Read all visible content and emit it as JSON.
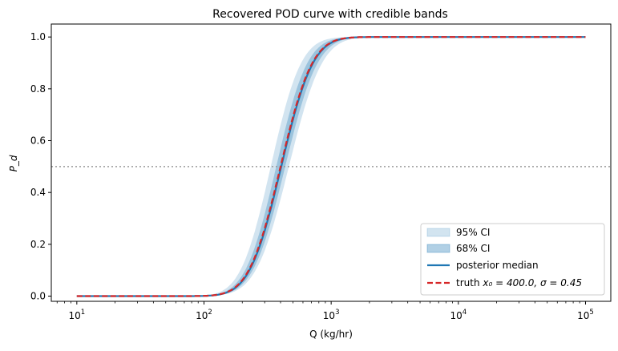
{
  "chart_data": {
    "type": "line",
    "title": "Recovered POD curve with credible bands",
    "xlabel": "Q  (kg/hr)",
    "ylabel": "P_d",
    "xscale": "log",
    "xlim": [
      6.3,
      158000
    ],
    "ylim": [
      -0.02,
      1.05
    ],
    "x_range": [
      10,
      100000
    ],
    "xticks": [
      {
        "v": 10,
        "base": "10",
        "exp": "1"
      },
      {
        "v": 100,
        "base": "10",
        "exp": "2"
      },
      {
        "v": 1000,
        "base": "10",
        "exp": "3"
      },
      {
        "v": 10000,
        "base": "10",
        "exp": "4"
      },
      {
        "v": 100000,
        "base": "10",
        "exp": "5"
      }
    ],
    "yticks": [
      0,
      0.2,
      0.4,
      0.6,
      0.8,
      1.0
    ],
    "ytick_labels": [
      "0.0",
      "0.2",
      "0.4",
      "0.6",
      "0.8",
      "1.0"
    ],
    "hline": {
      "y": 0.5,
      "style": "dotted",
      "color": "#999999"
    },
    "model": "lognormal CDF: P = Phi(ln(Q/x0)/sigma)",
    "bands": [
      {
        "name": "95% CI",
        "lower": {
          "x0": 465,
          "sigma": 0.47
        },
        "upper": {
          "x0": 335,
          "sigma": 0.43
        },
        "color": "#1f77b4",
        "opacity": 0.2
      },
      {
        "name": "68% CI",
        "lower": {
          "x0": 435,
          "sigma": 0.46
        },
        "upper": {
          "x0": 370,
          "sigma": 0.44
        },
        "color": "#1f77b4",
        "opacity": 0.3
      }
    ],
    "series": [
      {
        "name": "posterior median",
        "x0": 405,
        "sigma": 0.45,
        "color": "#1f77b4",
        "style": "solid"
      },
      {
        "name": "truth",
        "x0": 400.0,
        "sigma": 0.45,
        "color": "#d62728",
        "style": "dashed"
      }
    ],
    "sample_points": {
      "log10_Q": [
        1,
        2.0,
        2.1,
        2.2,
        2.3,
        2.4,
        2.5,
        2.6,
        2.7,
        2.8,
        2.9,
        3.0,
        3.1,
        3.2,
        3.3,
        5
      ],
      "truth_P": [
        0,
        0.001,
        0.005,
        0.02,
        0.061,
        0.151,
        0.301,
        0.496,
        0.692,
        0.844,
        0.936,
        0.979,
        0.995,
        0.999,
        1.0,
        1.0
      ]
    },
    "legend": {
      "placement": "bottom-right",
      "entries": [
        "95% CI",
        "68% CI",
        "posterior median",
        "truth  x₀ = 400.0, σ = 0.45"
      ]
    },
    "legend_labels": {
      "ci95": "95% CI",
      "ci68": "68% CI",
      "median": "posterior median",
      "truth_prefix": "truth",
      "truth_params": "x₀ = 400.0, σ = 0.45"
    }
  }
}
